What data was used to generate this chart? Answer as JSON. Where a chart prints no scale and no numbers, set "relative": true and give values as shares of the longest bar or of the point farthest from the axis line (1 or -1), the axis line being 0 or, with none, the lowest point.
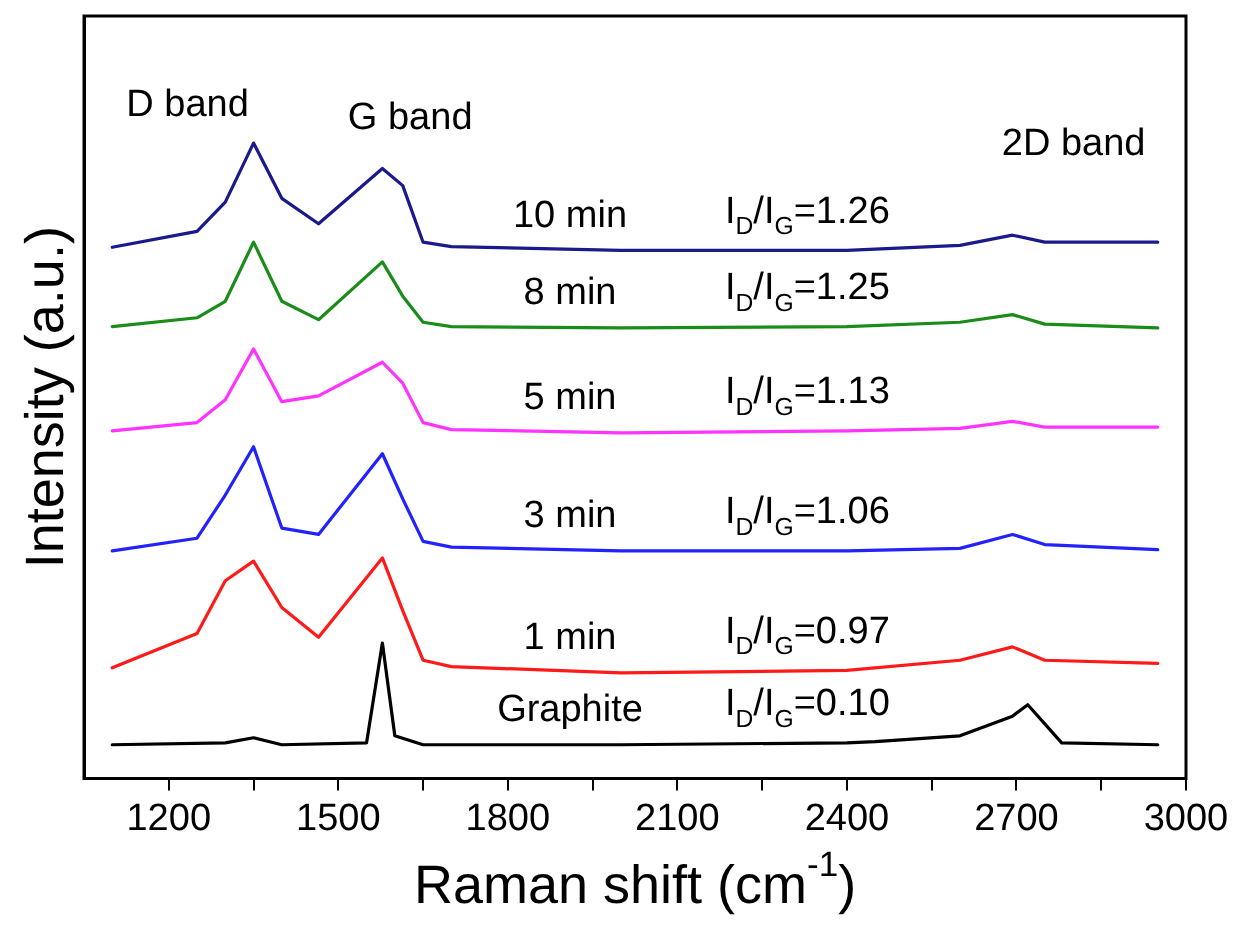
{
  "chart_data": {
    "type": "line",
    "relative": true,
    "xlabel": "Raman shift (cm$^{-1}$)",
    "ylabel": "Intensity (a.u.)",
    "xlim": [
      1050,
      3000
    ],
    "xticks": [
      1200,
      {
        "value": 1350,
        "label": null
      },
      1500,
      {
        "value": 1650,
        "label": null
      },
      1800,
      {
        "value": 1950,
        "label": null
      },
      2100,
      {
        "value": 2250,
        "label": null
      },
      2400,
      {
        "value": 2550,
        "label": null
      },
      2700,
      {
        "value": 2850,
        "label": null
      },
      3000
    ],
    "grid": false,
    "legend": false,
    "marker": "none",
    "line_style": "solid",
    "series": [
      {
        "name": "10 min",
        "color": "#1a1a8c",
        "x": [
          1100,
          1250,
          1300,
          1350,
          1400,
          1465,
          1578,
          1614,
          1650,
          1700,
          2000,
          2400,
          2600,
          2693,
          2750,
          2950
        ],
        "values": [
          0.836,
          0.861,
          0.907,
          1,
          0.913,
          0.873,
          0.96,
          0.933,
          0.844,
          0.837,
          0.831,
          0.831,
          0.839,
          0.855,
          0.844,
          0.844
        ]
      },
      {
        "name": "8 min",
        "color": "#1a8c1a",
        "x": [
          1100,
          1250,
          1300,
          1350,
          1400,
          1465,
          1578,
          1614,
          1650,
          1700,
          2000,
          2400,
          2600,
          2693,
          2750,
          2950
        ],
        "values": [
          0.711,
          0.725,
          0.751,
          0.844,
          0.751,
          0.722,
          0.813,
          0.759,
          0.718,
          0.711,
          0.709,
          0.711,
          0.718,
          0.73,
          0.715,
          0.709
        ]
      },
      {
        "name": "5 min",
        "color": "#ff33ff",
        "x": [
          1100,
          1250,
          1300,
          1350,
          1400,
          1465,
          1578,
          1614,
          1650,
          1700,
          2000,
          2400,
          2600,
          2693,
          2750,
          2950
        ],
        "values": [
          0.547,
          0.56,
          0.596,
          0.676,
          0.593,
          0.602,
          0.655,
          0.622,
          0.56,
          0.549,
          0.544,
          0.547,
          0.551,
          0.562,
          0.553,
          0.553
        ]
      },
      {
        "name": "3 min",
        "color": "#2222ff",
        "x": [
          1100,
          1250,
          1300,
          1350,
          1400,
          1465,
          1578,
          1614,
          1650,
          1700,
          2000,
          2400,
          2600,
          2693,
          2750,
          2950
        ],
        "values": [
          0.358,
          0.378,
          0.446,
          0.522,
          0.394,
          0.384,
          0.511,
          0.44,
          0.373,
          0.364,
          0.358,
          0.358,
          0.362,
          0.384,
          0.368,
          0.36
        ]
      },
      {
        "name": "1 min",
        "color": "#ff1a1a",
        "x": [
          1100,
          1250,
          1300,
          1350,
          1400,
          1465,
          1578,
          1614,
          1650,
          1700,
          2000,
          2400,
          2600,
          2693,
          2750,
          2950
        ],
        "values": [
          0.174,
          0.228,
          0.311,
          0.342,
          0.269,
          0.222,
          0.347,
          0.264,
          0.186,
          0.176,
          0.166,
          0.17,
          0.186,
          0.207,
          0.186,
          0.181
        ]
      },
      {
        "name": "Graphite",
        "color": "#000000",
        "x": [
          1100,
          1300,
          1350,
          1400,
          1550,
          1578,
          1600,
          1650,
          2000,
          2400,
          2450,
          2600,
          2693,
          2720,
          2780,
          2950
        ],
        "values": [
          0.053,
          0.056,
          0.064,
          0.053,
          0.056,
          0.213,
          0.067,
          0.053,
          0.053,
          0.056,
          0.058,
          0.067,
          0.098,
          0.116,
          0.056,
          0.053
        ]
      }
    ],
    "annotations": [
      "D band",
      "G band",
      "2D band",
      "I$_{D}$/I$_{G}$=1.26",
      "I$_{D}$/I$_{G}$=1.25",
      "I$_{D}$/I$_{G}$=1.13",
      "I$_{D}$/I$_{G}$=1.06",
      "I$_{D}$/I$_{G}$=0.97",
      "I$_{D}$/I$_{G}$=0.10"
    ]
  }
}
